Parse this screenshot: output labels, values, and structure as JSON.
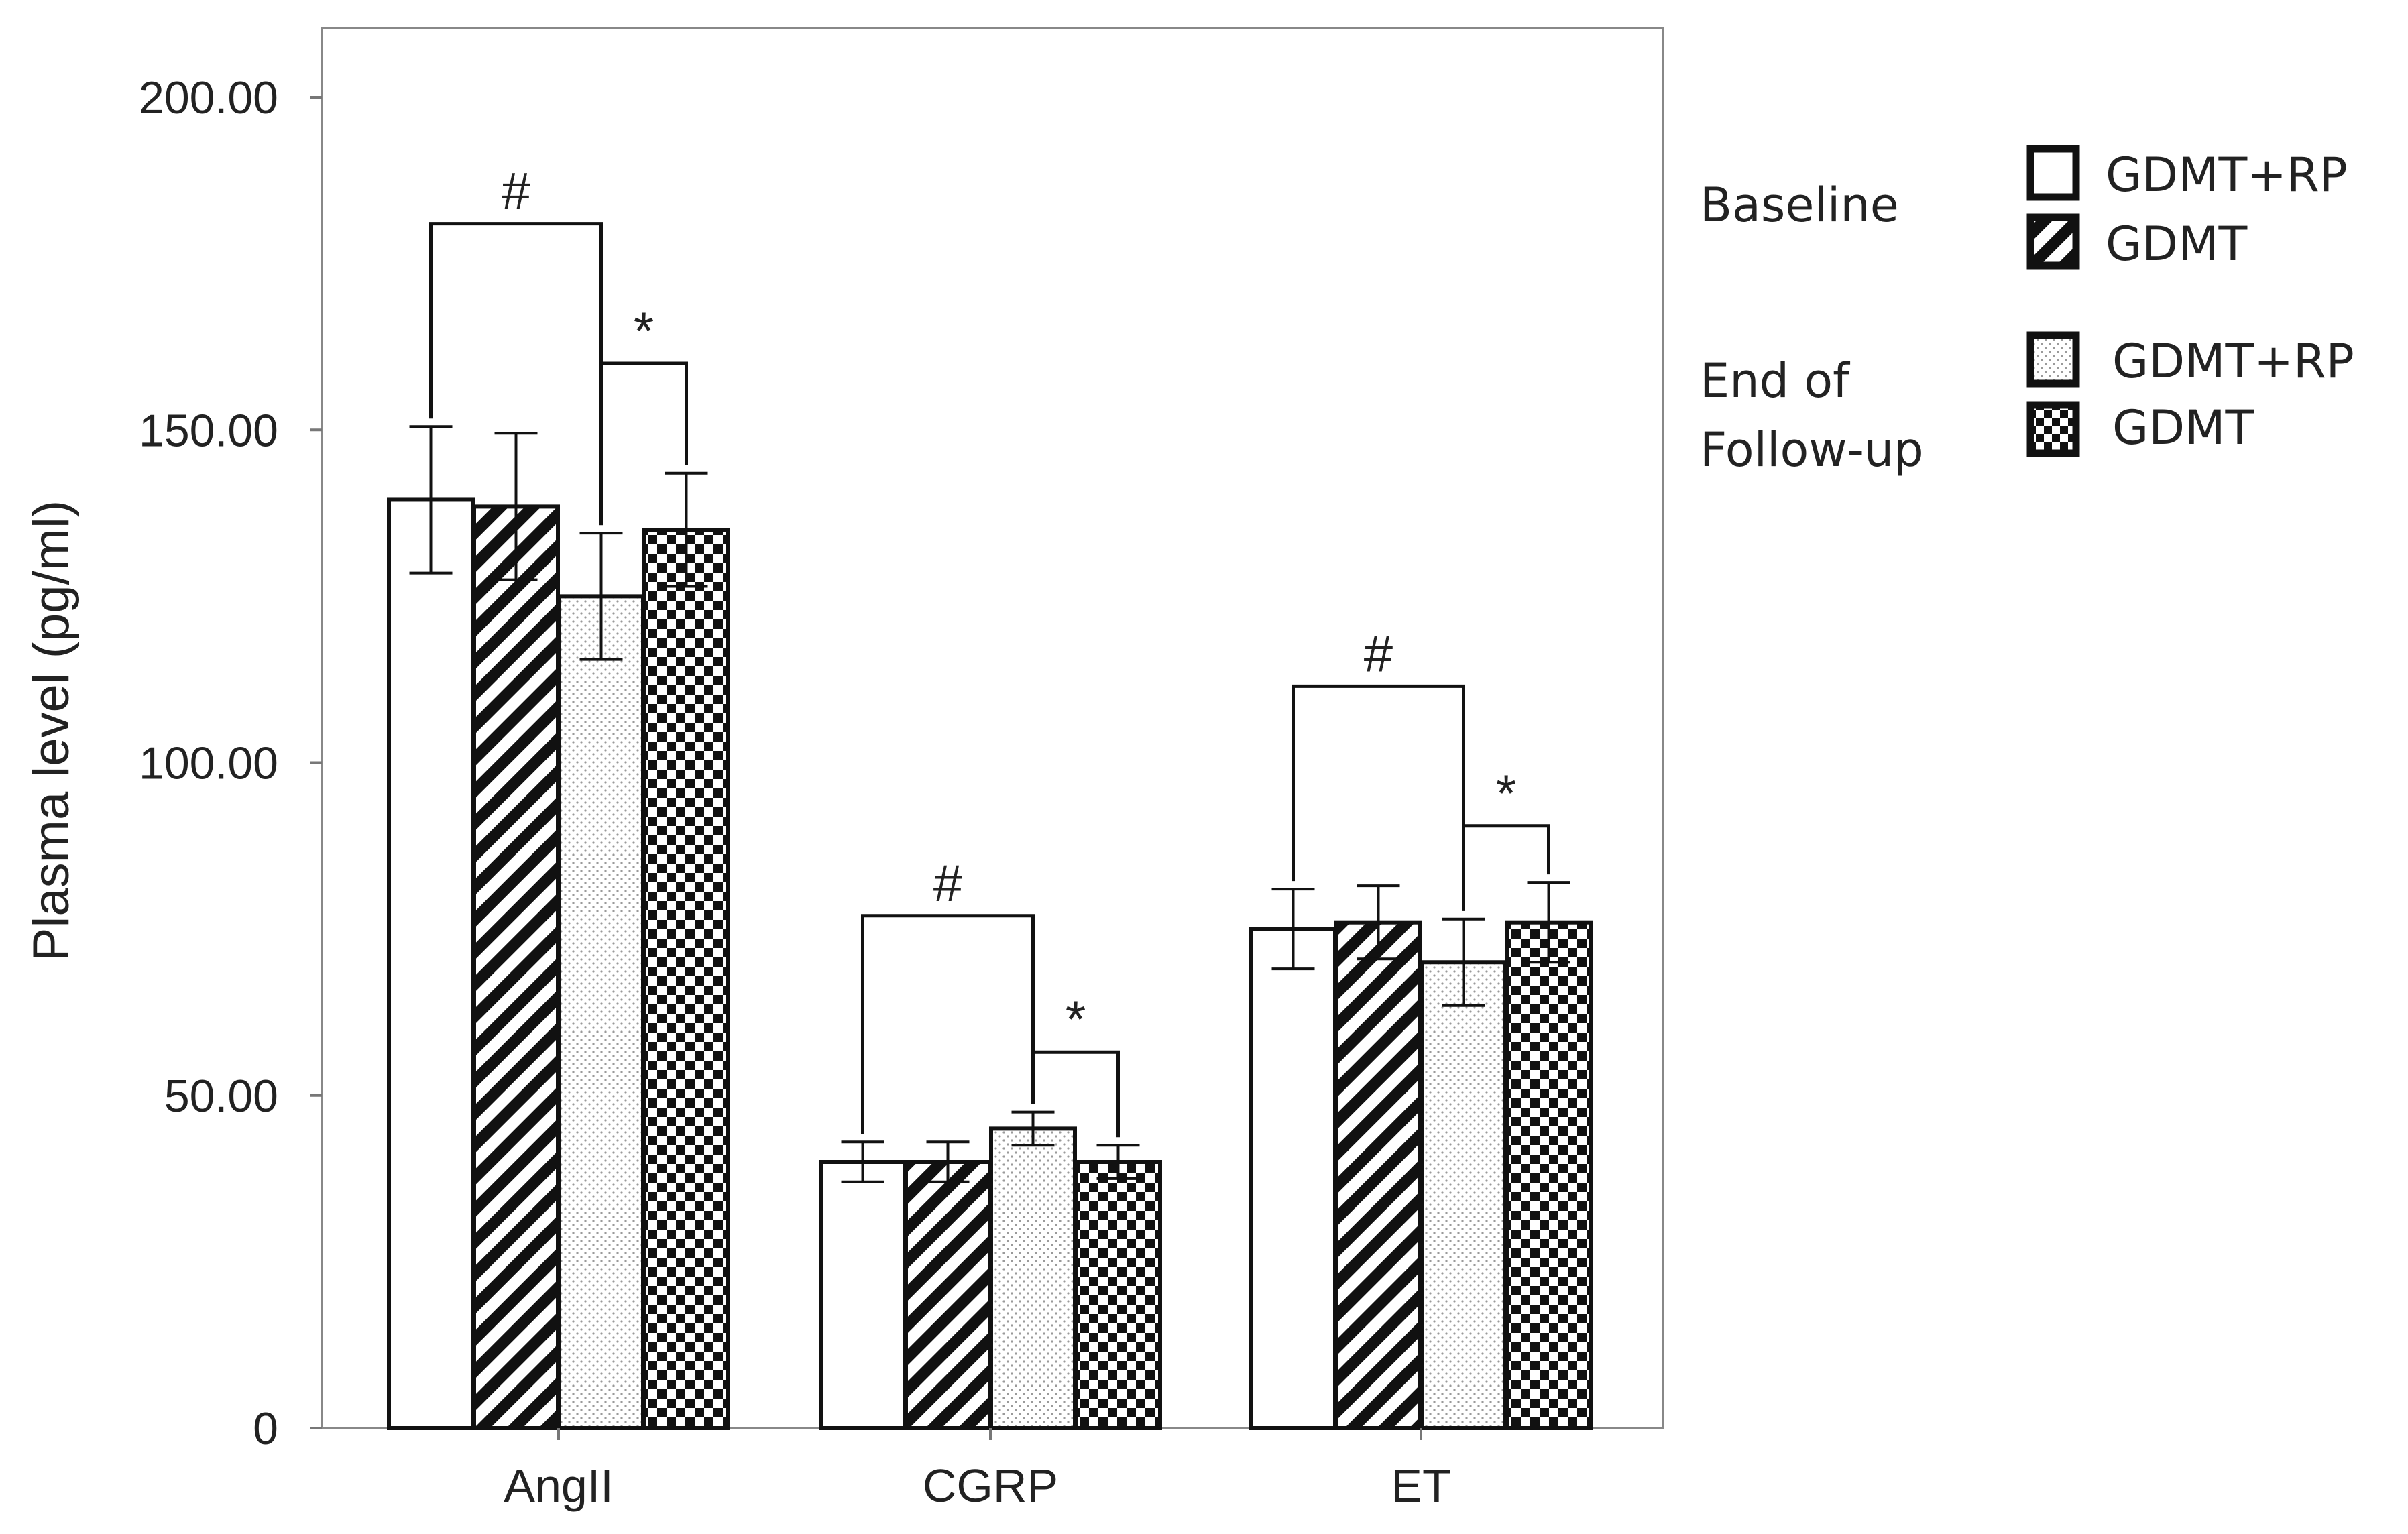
{
  "chart_data": {
    "type": "bar",
    "categories": [
      "AngII",
      "CGRP",
      "ET"
    ],
    "ylabel": "Plasma level (pg/ml)",
    "xlabel": "",
    "ylim": [
      0,
      200
    ],
    "yticks": [
      "0",
      "50.00",
      "100.00",
      "150.00",
      "200.00"
    ],
    "grid": false,
    "legend_position": "right",
    "legend_groups": [
      {
        "title": [
          "Baseline"
        ],
        "entries": [
          "GDMT+RP",
          "GDMT"
        ]
      },
      {
        "title": [
          "End of",
          "Follow-up"
        ],
        "entries": [
          "GDMT+RP",
          "GDMT"
        ]
      }
    ],
    "series": [
      {
        "pattern": "blank",
        "values": [
          139.5,
          40,
          75
        ],
        "error": [
          11,
          3,
          6
        ]
      },
      {
        "pattern": "diagonal-stripes",
        "values": [
          138.5,
          40,
          76
        ],
        "error": [
          11,
          3,
          5.5
        ]
      },
      {
        "pattern": "dots",
        "values": [
          125,
          45,
          70
        ],
        "error": [
          9.5,
          2.5,
          6.5
        ]
      },
      {
        "pattern": "checkerboard",
        "values": [
          135,
          40,
          76
        ],
        "error": [
          8.5,
          2.5,
          6
        ]
      }
    ],
    "annotations": [
      {
        "category": "AngII",
        "text": "#",
        "from_series": 0,
        "to_series": 2,
        "level": 181
      },
      {
        "category": "AngII",
        "text": "*",
        "from_series": 2,
        "to_series": 3,
        "level": 160
      },
      {
        "category": "CGRP",
        "text": "#",
        "from_series": 0,
        "to_series": 2,
        "level": 77
      },
      {
        "category": "CGRP",
        "text": "*",
        "from_series": 2,
        "to_series": 3,
        "level": 56.5
      },
      {
        "category": "ET",
        "text": "#",
        "from_series": 0,
        "to_series": 2,
        "level": 111.5
      },
      {
        "category": "ET",
        "text": "*",
        "from_series": 2,
        "to_series": 3,
        "level": 90.5
      }
    ]
  }
}
